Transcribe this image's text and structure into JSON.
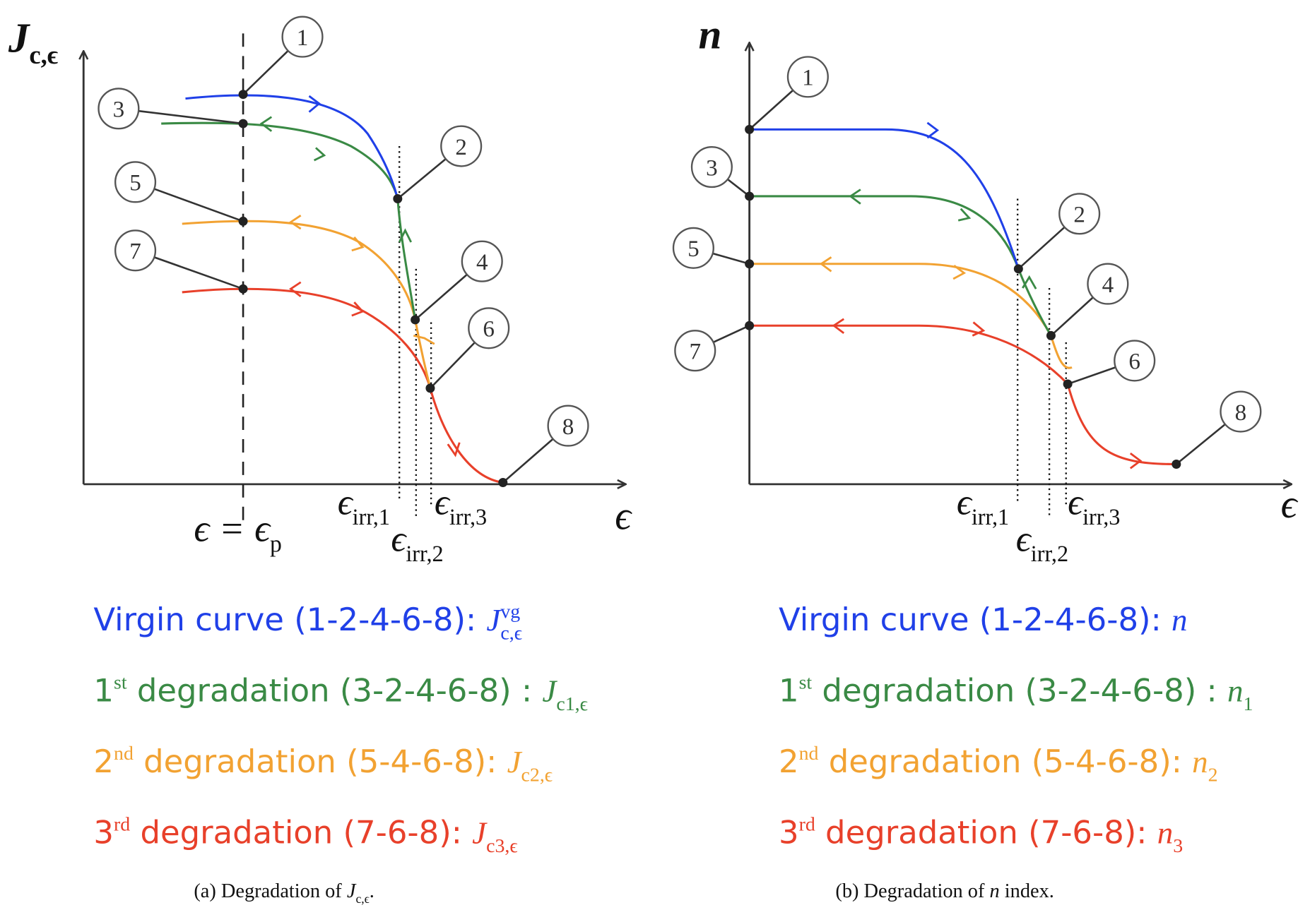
{
  "panels": [
    {
      "y_axis_label": {
        "symbol": "J",
        "subscript": "c,ϵ"
      },
      "x_axis_label": "ϵ",
      "point_labels": [
        "1",
        "2",
        "3",
        "4",
        "5",
        "6",
        "7",
        "8"
      ],
      "strain_marker": {
        "text": "ϵ = ϵ",
        "subscript": "p"
      },
      "irreversible_labels": [
        {
          "symbol": "ϵ",
          "subscript": "irr,1"
        },
        {
          "symbol": "ϵ",
          "subscript": "irr,2"
        },
        {
          "symbol": "ϵ",
          "subscript": "irr,3"
        }
      ],
      "legend": [
        {
          "text": "Virgin curve (1-2-4-6-8): ",
          "symbol": "J",
          "superscript": "vg",
          "subscript": "c,ϵ"
        },
        {
          "ordinal": "1",
          "ordinal_suffix": "st",
          "text": " degradation (3-2-4-6-8) : ",
          "symbol": "J",
          "subscript": "c1,ϵ"
        },
        {
          "ordinal": "2",
          "ordinal_suffix": "nd",
          "text": " degradation (5-4-6-8): ",
          "symbol": "J",
          "subscript": "c2,ϵ"
        },
        {
          "ordinal": "3",
          "ordinal_suffix": "rd",
          "text": " degradation (7-6-8): ",
          "symbol": "J",
          "subscript": "c3,ϵ"
        }
      ],
      "caption": {
        "text": "(a) Degradation of ",
        "symbol": "J",
        "subscript": "c,ϵ",
        "suffix": "."
      }
    },
    {
      "y_axis_label": {
        "symbol": "n"
      },
      "x_axis_label": "ϵ",
      "point_labels": [
        "1",
        "2",
        "3",
        "4",
        "5",
        "6",
        "7",
        "8"
      ],
      "irreversible_labels": [
        {
          "symbol": "ϵ",
          "subscript": "irr,1"
        },
        {
          "symbol": "ϵ",
          "subscript": "irr,2"
        },
        {
          "symbol": "ϵ",
          "subscript": "irr,3"
        }
      ],
      "legend": [
        {
          "text": "Virgin curve (1-2-4-6-8): ",
          "symbol": "n"
        },
        {
          "ordinal": "1",
          "ordinal_suffix": "st",
          "text": " degradation (3-2-4-6-8) : ",
          "symbol": "n",
          "subscript": "1"
        },
        {
          "ordinal": "2",
          "ordinal_suffix": "nd",
          "text": " degradation (5-4-6-8): ",
          "symbol": "n",
          "subscript": "2"
        },
        {
          "ordinal": "3",
          "ordinal_suffix": "rd",
          "text": " degradation (7-6-8): ",
          "symbol": "n",
          "subscript": "3"
        }
      ],
      "caption": {
        "text": "(b) Degradation of ",
        "symbol": "n",
        "suffix": " index."
      }
    }
  ]
}
